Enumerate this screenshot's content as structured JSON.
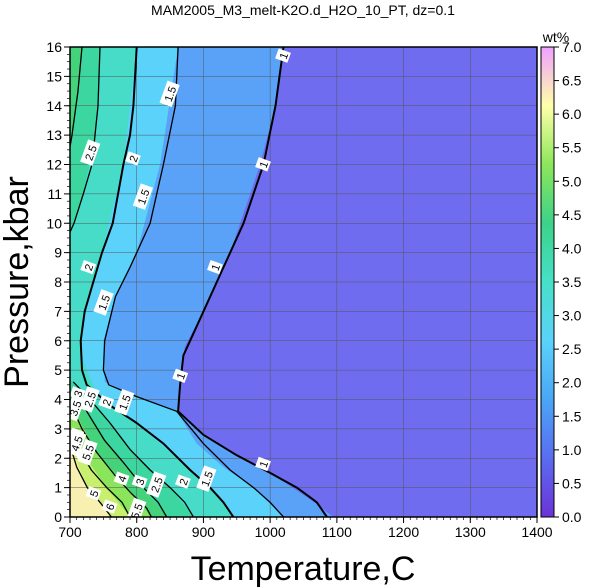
{
  "chart_data": {
    "type": "heatmap",
    "title": "MAM2005_M3_melt-K2O.d_H2O_10_PT, dz=0.1",
    "xlabel": "Temperature,C",
    "ylabel": "Pressure,kbar",
    "xlim": [
      700,
      1400
    ],
    "ylim": [
      0,
      16
    ],
    "x_ticks": [
      "700",
      "800",
      "900",
      "1000",
      "1100",
      "1200",
      "1300",
      "1400"
    ],
    "y_ticks": [
      "0",
      "1",
      "2",
      "3",
      "4",
      "5",
      "6",
      "7",
      "8",
      "9",
      "10",
      "11",
      "12",
      "13",
      "14",
      "15",
      "16"
    ],
    "grid": true,
    "colorbar": {
      "label": "wt%",
      "range": [
        0,
        7
      ],
      "ticks": [
        "0.0",
        "0.5",
        "1.0",
        "1.5",
        "2.0",
        "2.5",
        "3.0",
        "3.5",
        "4.0",
        "4.5",
        "5.0",
        "5.5",
        "6.0",
        "6.5",
        "7.0"
      ],
      "palette": [
        "#6c32d8",
        "#5a6cf0",
        "#4aa6f6",
        "#5ad2fa",
        "#46e0c8",
        "#3cd28a",
        "#8ce65a",
        "#ffffaa",
        "#f0a0ff"
      ]
    },
    "regions": [
      {
        "name": "0.5–1.0",
        "color": "#6f6cf0"
      },
      {
        "name": "1.0–1.5",
        "color": "#5aa2f8"
      },
      {
        "name": "1.5–2.0",
        "color": "#5ad2fa"
      },
      {
        "name": "2.0–2.5",
        "color": "#46dcc8"
      },
      {
        "name": "2.5–3.0",
        "color": "#3cd6a0"
      },
      {
        "name": "3.0–4.0",
        "color": "#44d27a"
      },
      {
        "name": "4.0–5.0",
        "color": "#8ae45c"
      },
      {
        "name": "5.0–6.0",
        "color": "#c8f06e"
      },
      {
        "name": ">6.0",
        "color": "#f8f0b0"
      }
    ],
    "contours": [
      {
        "level": "1",
        "points": [
          [
            1020,
            16
          ],
          [
            1008,
            14
          ],
          [
            990,
            12
          ],
          [
            960,
            10
          ],
          [
            920,
            8
          ],
          [
            890,
            6.5
          ],
          [
            870,
            5.5
          ],
          [
            865,
            4.5
          ],
          [
            862,
            3.6
          ],
          [
            900,
            2.8
          ],
          [
            950,
            2.1
          ],
          [
            1000,
            1.5
          ],
          [
            1040,
            1.0
          ],
          [
            1070,
            0.5
          ],
          [
            1085,
            0
          ]
        ]
      },
      {
        "level": "1.5",
        "points": [
          [
            862,
            16
          ],
          [
            858,
            14
          ],
          [
            840,
            12
          ],
          [
            820,
            10
          ],
          [
            790,
            8.5
          ],
          [
            768,
            7.5
          ],
          [
            752,
            6
          ],
          [
            750,
            5
          ],
          [
            758,
            4.5
          ],
          [
            800,
            4.1
          ],
          [
            860,
            3.6
          ],
          [
            900,
            2.5
          ],
          [
            940,
            1.6
          ],
          [
            975,
            1.0
          ],
          [
            1000,
            0.5
          ],
          [
            1020,
            0
          ]
        ]
      },
      {
        "level": "2",
        "points": [
          [
            800,
            16
          ],
          [
            795,
            14
          ],
          [
            790,
            13
          ],
          [
            780,
            12
          ],
          [
            764,
            10
          ],
          [
            748,
            9
          ],
          [
            735,
            8
          ],
          [
            722,
            7
          ],
          [
            716,
            6
          ],
          [
            718,
            5
          ],
          [
            725,
            4.5
          ],
          [
            760,
            3.8
          ],
          [
            800,
            3.2
          ],
          [
            840,
            2.5
          ],
          [
            880,
            1.6
          ],
          [
            910,
            1.0
          ],
          [
            930,
            0.5
          ],
          [
            945,
            0
          ]
        ]
      },
      {
        "level": "2.5",
        "points": [
          [
            745,
            16
          ],
          [
            742,
            14
          ],
          [
            733,
            12
          ],
          [
            720,
            11
          ],
          [
            706,
            10
          ],
          [
            700,
            9.7
          ]
        ]
      },
      {
        "level": "2.5",
        "points": [
          [
            705,
            4.6
          ],
          [
            730,
            4.0
          ],
          [
            760,
            3.2
          ],
          [
            790,
            2.3
          ],
          [
            820,
            1.6
          ],
          [
            850,
            1.0
          ],
          [
            872,
            0.5
          ],
          [
            885,
            0
          ]
        ]
      },
      {
        "level": "3",
        "points": [
          [
            718,
            16
          ],
          [
            712,
            14.5
          ],
          [
            703,
            13
          ],
          [
            700,
            12.6
          ]
        ]
      },
      {
        "level": "3",
        "points": [
          [
            703,
            4.3
          ],
          [
            725,
            3.6
          ],
          [
            752,
            2.6
          ],
          [
            782,
            1.8
          ],
          [
            810,
            1.0
          ],
          [
            832,
            0.5
          ],
          [
            845,
            0
          ]
        ]
      },
      {
        "level": "4",
        "points": [
          [
            702,
            3.8
          ],
          [
            718,
            3.0
          ],
          [
            740,
            2.2
          ],
          [
            768,
            1.4
          ],
          [
            792,
            0.8
          ],
          [
            815,
            0.3
          ],
          [
            822,
            0
          ]
        ]
      },
      {
        "level": "5",
        "points": [
          [
            702,
            3.0
          ],
          [
            712,
            2.4
          ],
          [
            732,
            1.6
          ],
          [
            755,
            1.0
          ],
          [
            778,
            0.5
          ],
          [
            790,
            0
          ]
        ]
      },
      {
        "level": "6",
        "points": [
          [
            702,
            2.3
          ],
          [
            710,
            1.7
          ],
          [
            726,
            1.0
          ],
          [
            745,
            0.5
          ],
          [
            762,
            0
          ]
        ]
      }
    ],
    "labels": [
      {
        "text": "1",
        "x": 1020,
        "y": 15.7
      },
      {
        "text": "1",
        "x": 990,
        "y": 12.0
      },
      {
        "text": "1",
        "x": 918,
        "y": 8.5
      },
      {
        "text": "1",
        "x": 866,
        "y": 4.8
      },
      {
        "text": "1",
        "x": 990,
        "y": 1.8
      },
      {
        "text": "1.5",
        "x": 850,
        "y": 14.4
      },
      {
        "text": "1.5",
        "x": 810,
        "y": 10.9
      },
      {
        "text": "1.5",
        "x": 751,
        "y": 7.3
      },
      {
        "text": "1.5",
        "x": 782,
        "y": 3.9
      },
      {
        "text": "1.5",
        "x": 905,
        "y": 1.3
      },
      {
        "text": "2",
        "x": 795,
        "y": 12.2
      },
      {
        "text": "2",
        "x": 728,
        "y": 8.5
      },
      {
        "text": "2",
        "x": 755,
        "y": 3.9
      },
      {
        "text": "2",
        "x": 870,
        "y": 1.2
      },
      {
        "text": "2.5",
        "x": 731,
        "y": 12.4
      },
      {
        "text": "2.5",
        "x": 730,
        "y": 4.0
      },
      {
        "text": "2.5",
        "x": 830,
        "y": 1.1
      },
      {
        "text": "3",
        "x": 712,
        "y": 4.2
      },
      {
        "text": "3",
        "x": 805,
        "y": 1.2
      },
      {
        "text": "3.5",
        "x": 708,
        "y": 3.7
      },
      {
        "text": "4",
        "x": 710,
        "y": 2.8
      },
      {
        "text": "4",
        "x": 778,
        "y": 1.3
      },
      {
        "text": "4.5",
        "x": 710,
        "y": 2.5
      },
      {
        "text": "5",
        "x": 722,
        "y": 2.1
      },
      {
        "text": "5",
        "x": 736,
        "y": 0.8
      },
      {
        "text": "5.5",
        "x": 727,
        "y": 2.2
      },
      {
        "text": "5.5",
        "x": 800,
        "y": 0.2
      },
      {
        "text": "6",
        "x": 760,
        "y": 0.35
      }
    ]
  }
}
